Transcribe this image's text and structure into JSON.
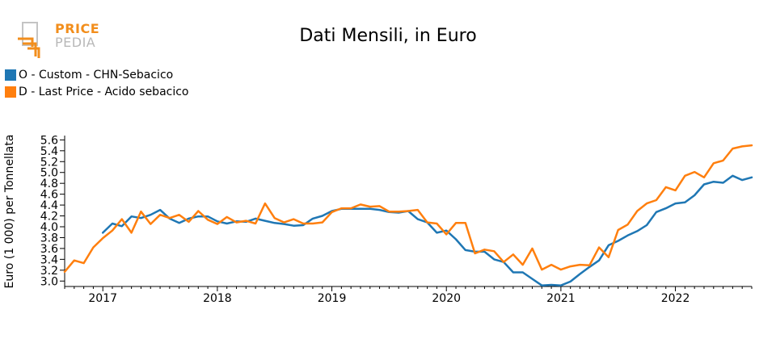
{
  "logo": {
    "line1": "PRICE",
    "line2": "PEDIA"
  },
  "colors": {
    "series0": "#1f77b4",
    "series1": "#ff7f0e",
    "logo_orange": "#f28e1c",
    "logo_gray": "#b8b8b8"
  },
  "chart_data": {
    "type": "line",
    "title": "Dati Mensili, in Euro",
    "ylabel": "Euro (1 000) per Tonnellata",
    "xlabel": "",
    "ylim": [
      2.9,
      5.65
    ],
    "xlim": [
      "2016-09",
      "2022-09"
    ],
    "y_ticks": [
      "3.0",
      "3.2",
      "3.4",
      "3.6",
      "3.8",
      "4.0",
      "4.2",
      "4.4",
      "4.6",
      "4.8",
      "5.0",
      "5.2",
      "5.4",
      "5.6"
    ],
    "x_ticks": [
      "2017",
      "2018",
      "2019",
      "2020",
      "2021",
      "2022"
    ],
    "grid": false,
    "legend_position": "top-left",
    "series": [
      {
        "name": "O - Custom - CHN-Sebacico",
        "x": [
          "2017-01",
          "2017-02",
          "2017-03",
          "2017-04",
          "2017-05",
          "2017-06",
          "2017-07",
          "2017-08",
          "2017-09",
          "2017-10",
          "2017-11",
          "2017-12",
          "2018-01",
          "2018-02",
          "2018-03",
          "2018-04",
          "2018-05",
          "2018-06",
          "2018-07",
          "2018-08",
          "2018-09",
          "2018-10",
          "2018-11",
          "2018-12",
          "2019-01",
          "2019-02",
          "2019-03",
          "2019-04",
          "2019-05",
          "2019-06",
          "2019-07",
          "2019-08",
          "2019-09",
          "2019-10",
          "2019-11",
          "2019-12",
          "2020-01",
          "2020-02",
          "2020-03",
          "2020-04",
          "2020-05",
          "2020-06",
          "2020-07",
          "2020-08",
          "2020-09",
          "2020-10",
          "2020-11",
          "2020-12",
          "2021-01",
          "2021-02",
          "2021-03",
          "2021-04",
          "2021-05",
          "2021-06",
          "2021-07",
          "2021-08",
          "2021-09",
          "2021-10",
          "2021-11",
          "2021-12",
          "2022-01",
          "2022-02",
          "2022-03",
          "2022-04",
          "2022-05",
          "2022-06",
          "2022-07",
          "2022-08",
          "2022-09"
        ],
        "values": [
          3.89,
          4.06,
          4.01,
          4.19,
          4.16,
          4.22,
          4.31,
          4.15,
          4.07,
          4.15,
          4.19,
          4.19,
          4.1,
          4.06,
          4.1,
          4.09,
          4.15,
          4.11,
          4.07,
          4.05,
          4.02,
          4.03,
          4.15,
          4.2,
          4.29,
          4.33,
          4.33,
          4.33,
          4.33,
          4.31,
          4.27,
          4.26,
          4.29,
          4.14,
          4.08,
          3.89,
          3.93,
          3.77,
          3.57,
          3.54,
          3.54,
          3.4,
          3.35,
          3.16,
          3.16,
          3.04,
          2.92,
          2.93,
          2.92,
          2.99,
          3.13,
          3.26,
          3.38,
          3.66,
          3.74,
          3.84,
          3.92,
          4.03,
          4.27,
          4.34,
          4.43,
          4.45,
          4.58,
          4.78,
          4.83,
          4.81,
          4.94,
          4.86,
          4.91
        ]
      },
      {
        "name": "D - Last Price - Acido sebacico",
        "x": [
          "2016-09",
          "2016-10",
          "2016-11",
          "2016-12",
          "2017-01",
          "2017-02",
          "2017-03",
          "2017-04",
          "2017-05",
          "2017-06",
          "2017-07",
          "2017-08",
          "2017-09",
          "2017-10",
          "2017-11",
          "2017-12",
          "2018-01",
          "2018-02",
          "2018-03",
          "2018-04",
          "2018-05",
          "2018-06",
          "2018-07",
          "2018-08",
          "2018-09",
          "2018-10",
          "2018-11",
          "2018-12",
          "2019-01",
          "2019-02",
          "2019-03",
          "2019-04",
          "2019-05",
          "2019-06",
          "2019-07",
          "2019-08",
          "2019-09",
          "2019-10",
          "2019-11",
          "2019-12",
          "2020-01",
          "2020-02",
          "2020-03",
          "2020-04",
          "2020-05",
          "2020-06",
          "2020-07",
          "2020-08",
          "2020-09",
          "2020-10",
          "2020-11",
          "2020-12",
          "2021-01",
          "2021-02",
          "2021-03",
          "2021-04",
          "2021-05",
          "2021-06",
          "2021-07",
          "2021-08",
          "2021-09",
          "2021-10",
          "2021-11",
          "2021-12",
          "2022-01",
          "2022-02",
          "2022-03",
          "2022-04",
          "2022-05",
          "2022-06",
          "2022-07",
          "2022-08",
          "2022-09"
        ],
        "values": [
          3.17,
          3.38,
          3.33,
          3.62,
          3.79,
          3.93,
          4.14,
          3.89,
          4.28,
          4.05,
          4.22,
          4.16,
          4.22,
          4.09,
          4.29,
          4.13,
          4.05,
          4.18,
          4.08,
          4.11,
          4.06,
          4.43,
          4.16,
          4.08,
          4.14,
          4.06,
          4.06,
          4.08,
          4.27,
          4.34,
          4.34,
          4.41,
          4.37,
          4.38,
          4.28,
          4.28,
          4.29,
          4.31,
          4.08,
          4.06,
          3.86,
          4.07,
          4.07,
          3.51,
          3.58,
          3.55,
          3.35,
          3.49,
          3.3,
          3.6,
          3.21,
          3.3,
          3.21,
          3.27,
          3.3,
          3.29,
          3.62,
          3.44,
          3.94,
          4.04,
          4.29,
          4.43,
          4.49,
          4.73,
          4.67,
          4.94,
          5.01,
          4.91,
          5.17,
          5.22,
          5.44,
          5.48,
          5.5
        ]
      }
    ]
  }
}
